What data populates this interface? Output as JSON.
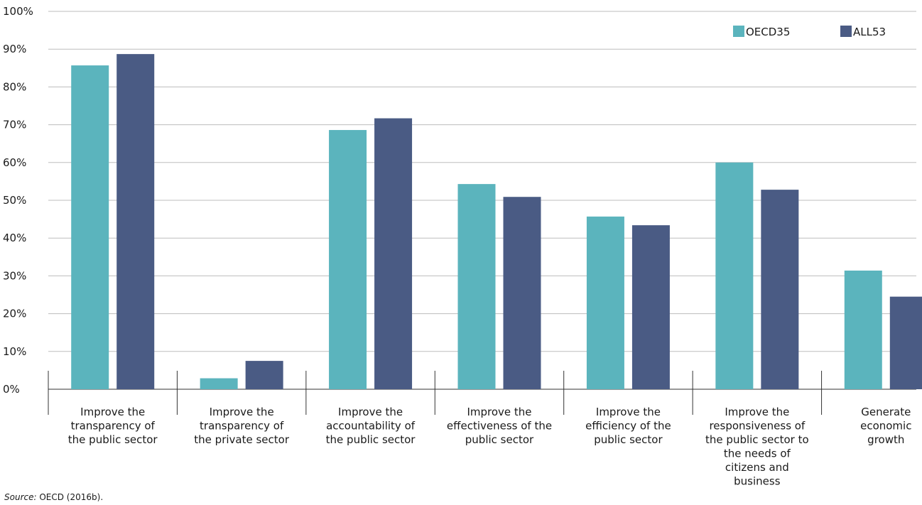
{
  "chart_data": {
    "type": "bar",
    "categories": [
      [
        "Improve the",
        "transparency of",
        "the public sector"
      ],
      [
        "Improve the",
        "transparency of",
        "the private sector"
      ],
      [
        "Improve the",
        "accountability of",
        "the public sector"
      ],
      [
        "Improve the",
        "effectiveness of the",
        "public sector"
      ],
      [
        "Improve the",
        "efficiency of the",
        "public sector"
      ],
      [
        "Improve the",
        "responsiveness of",
        "the public sector to",
        "the needs of",
        "citizens and",
        "business"
      ],
      [
        "Generate",
        "economic",
        "growth"
      ]
    ],
    "series": [
      {
        "name": "OECD35",
        "color": "#5bb4bd",
        "values": [
          85.7,
          2.9,
          68.6,
          54.3,
          45.7,
          60.0,
          31.4
        ]
      },
      {
        "name": "ALL53",
        "color": "#4a5b84",
        "values": [
          88.7,
          7.5,
          71.7,
          50.9,
          43.4,
          52.8,
          24.5
        ]
      }
    ],
    "yticks": [
      "0%",
      "10%",
      "20%",
      "30%",
      "40%",
      "50%",
      "60%",
      "70%",
      "80%",
      "90%",
      "100%"
    ],
    "ylim": [
      0,
      100
    ],
    "grid": true,
    "legend_position": "top-right"
  },
  "source": {
    "label": "Source:",
    "text": " OECD (2016b)."
  }
}
